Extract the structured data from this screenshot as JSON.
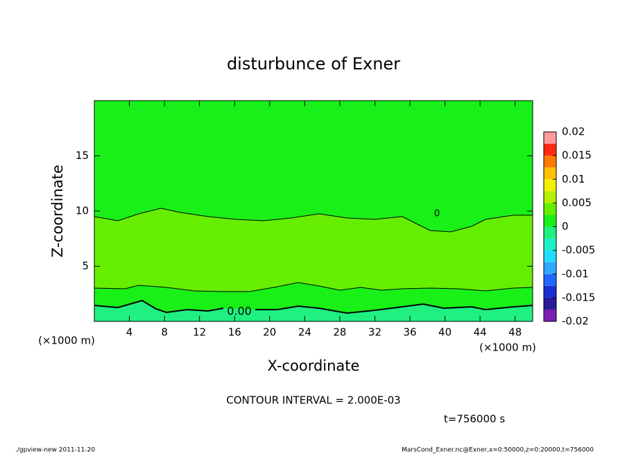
{
  "chart_data": {
    "type": "contour",
    "title": "disturbunce of Exner",
    "x_label": "X-coordinate",
    "y_label": "Z-coordinate",
    "x_units": "(×1000 m)",
    "xlim": [
      0,
      50
    ],
    "xticks": [
      4,
      8,
      12,
      16,
      20,
      24,
      28,
      32,
      36,
      40,
      44,
      48
    ],
    "ylim": [
      0,
      20
    ],
    "yticks": [
      5,
      10,
      15
    ],
    "contour_labels": [
      "0.00",
      "0"
    ],
    "colorbar": {
      "lim": [
        -0.02,
        0.02
      ],
      "ticks": [
        0.02,
        0.015,
        0.01,
        0.005,
        0,
        -0.005,
        -0.01,
        -0.015,
        -0.02
      ],
      "colors": [
        "#7a1fb0",
        "#2a1a9a",
        "#1a30d0",
        "#2068ff",
        "#30a8ff",
        "#20dcff",
        "#20f0c8",
        "#20f080",
        "#18f018",
        "#66ee00",
        "#b4f000",
        "#f0f000",
        "#ffc000",
        "#ff7a00",
        "#ff2a10",
        "#ff9a9a"
      ]
    },
    "contour_interval": "CONTOUR INTERVAL = 2.000E-03",
    "time_label": "t=756000 s",
    "footer_left": "./gpview-new   2011-11-20",
    "footer_right": "MarsCond_Exner.nc@Exner,x=0:50000,z=0:20000,t=756000"
  }
}
